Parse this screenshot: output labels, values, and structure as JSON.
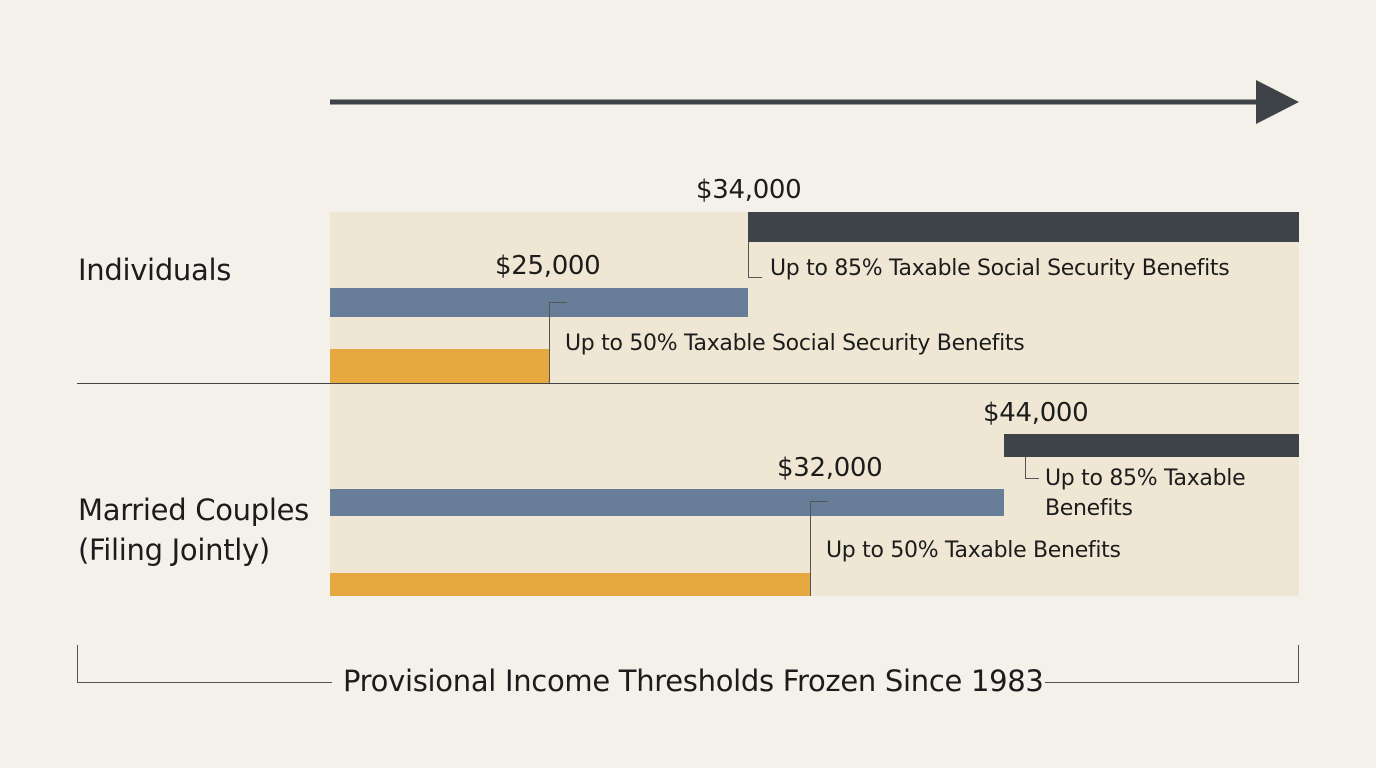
{
  "colors": {
    "background": "#f3f1e9",
    "band": "#efe7d3",
    "threshold_50": "#e6a940",
    "threshold_mid": "#677d98",
    "threshold_85": "#3e4347",
    "arrow": "#3e4347",
    "rule": "#555555"
  },
  "arrow": {
    "icon": "arrow-right-icon"
  },
  "individuals": {
    "label": "Individuals",
    "threshold_low": "$25,000",
    "threshold_high": "$34,000",
    "note_50": "Up to 50% Taxable Social Security Benefits",
    "note_85": "Up to 85% Taxable Social Security Benefits"
  },
  "married": {
    "label_line1": "Married Couples",
    "label_line2": "(Filing Jointly)",
    "threshold_low": "$32,000",
    "threshold_high": "$44,000",
    "note_50": "Up to 50% Taxable Benefits",
    "note_85_line1": "Up to 85% Taxable",
    "note_85_line2": "Benefits"
  },
  "footer": {
    "caption": "Provisional Income Thresholds Frozen Since 1983"
  }
}
